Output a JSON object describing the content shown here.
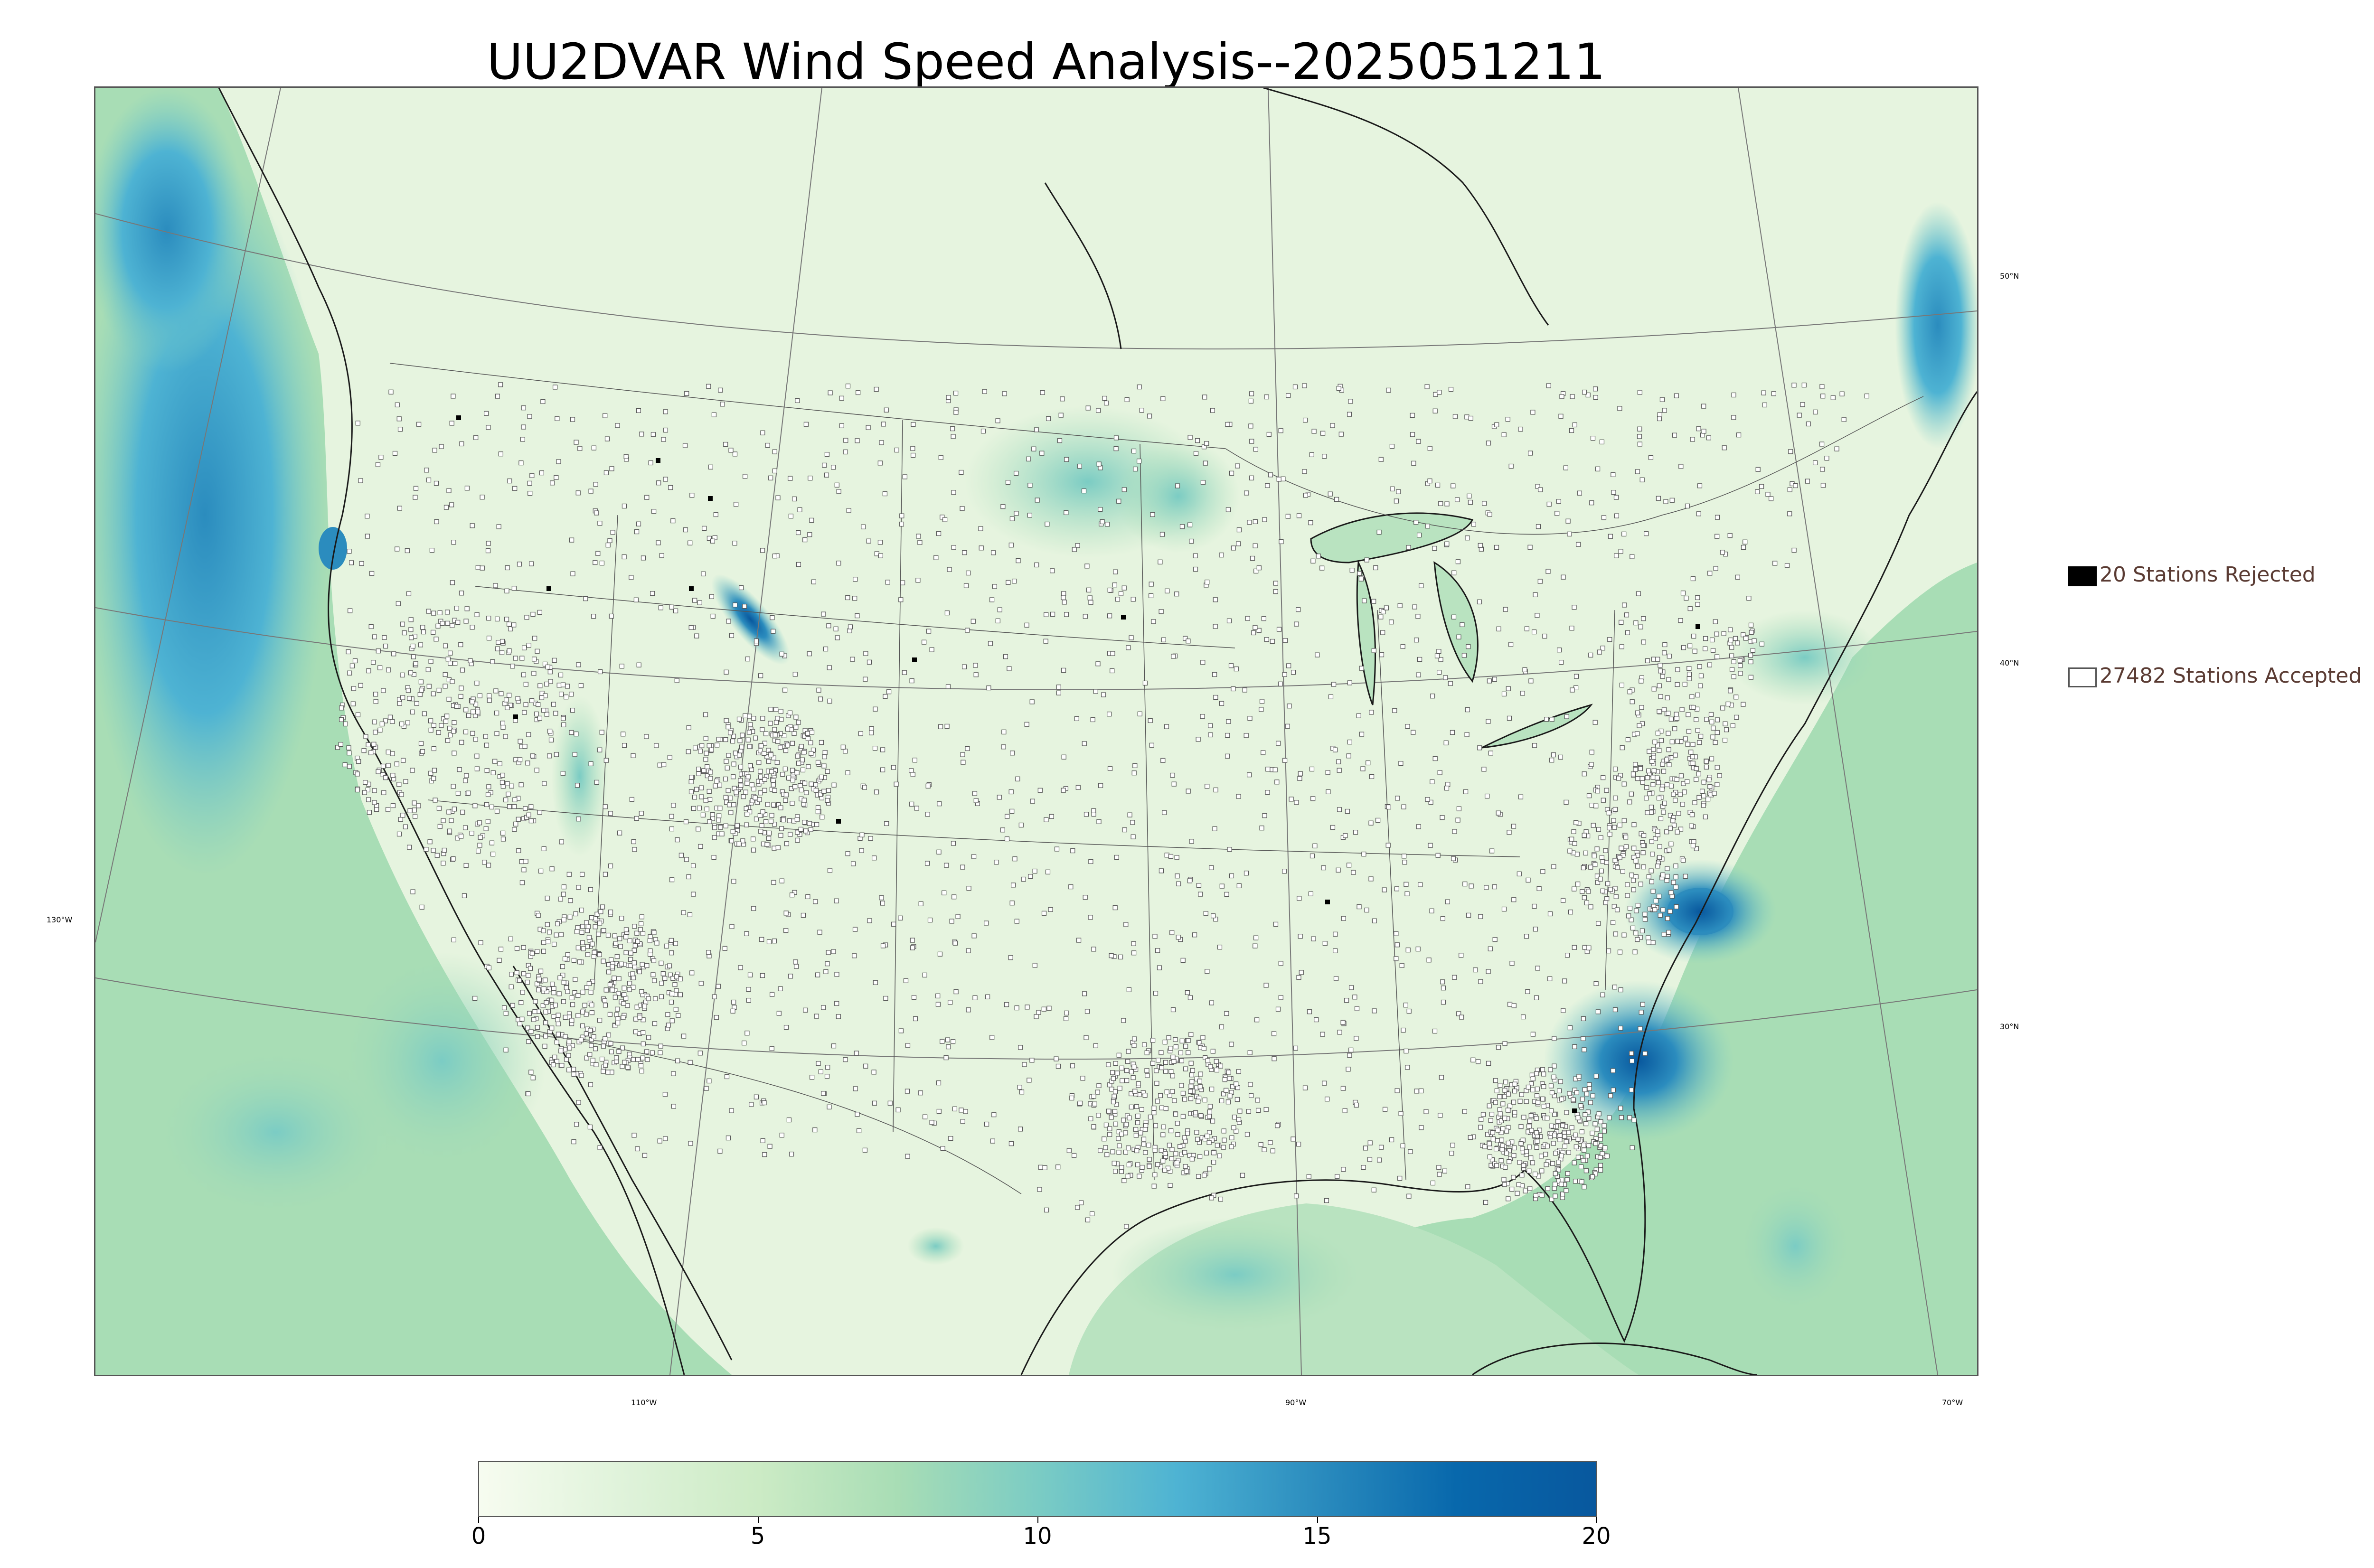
{
  "title": "UU2DVAR Wind Speed Analysis--2025051211",
  "legend": {
    "rejected": {
      "label": "20 Stations Rejected",
      "color": "#000000"
    },
    "accepted": {
      "label": "27482 Stations Accepted",
      "color": "#ffffff"
    }
  },
  "lon_labels": [
    "130°W",
    "110°W",
    "90°W",
    "70°W"
  ],
  "lat_labels": [
    "50°N",
    "40°N",
    "30°N"
  ],
  "colorbar": {
    "ticks": [
      "0",
      "5",
      "10",
      "15",
      "20"
    ],
    "min": 0,
    "max": 20,
    "colors": [
      "#f7fcf0",
      "#e0f3db",
      "#ccebc5",
      "#a8ddb5",
      "#7bccc4",
      "#4eb3d3",
      "#2b8cbe",
      "#0868ac",
      "#08589e"
    ]
  },
  "colors": {
    "land": "#eaf6e4",
    "frame": "#555555",
    "coast": "#1a1a1a",
    "grid": "#777777",
    "station_outline": "#555555"
  }
}
